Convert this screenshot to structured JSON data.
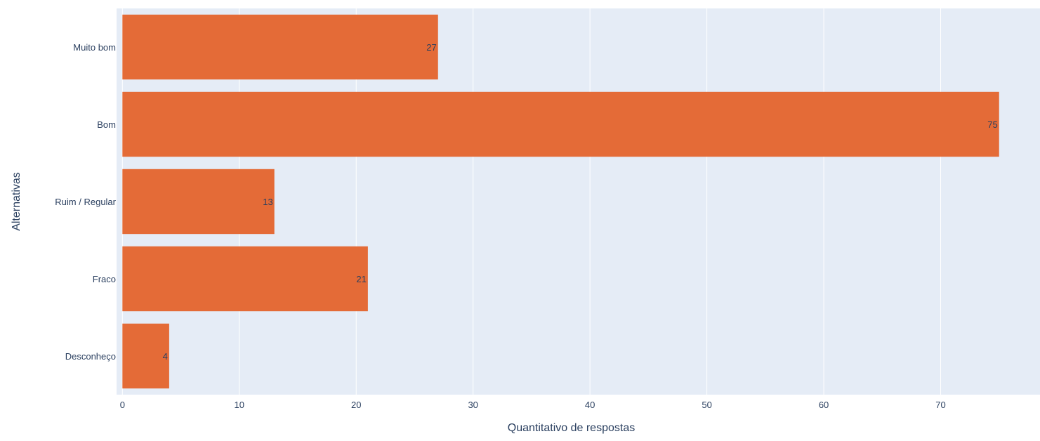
{
  "chart_data": {
    "type": "bar",
    "orientation": "horizontal",
    "categories": [
      "Muito bom",
      "Bom",
      "Ruim / Regular",
      "Fraco",
      "Desconheço"
    ],
    "values": [
      27,
      75,
      13,
      21,
      4
    ],
    "xlabel": "Quantitativo de respostas",
    "ylabel": "Alternativas",
    "xlim": [
      -0.5,
      78.5
    ],
    "xticks": [
      0,
      10,
      20,
      30,
      40,
      50,
      60,
      70
    ],
    "grid": "vertical",
    "data_labels": "inside-end"
  },
  "colors": {
    "bar": "#e46b37",
    "plot_background": "#e5ecf6",
    "grid": "#ffffff",
    "text": "#2a3f5f"
  }
}
